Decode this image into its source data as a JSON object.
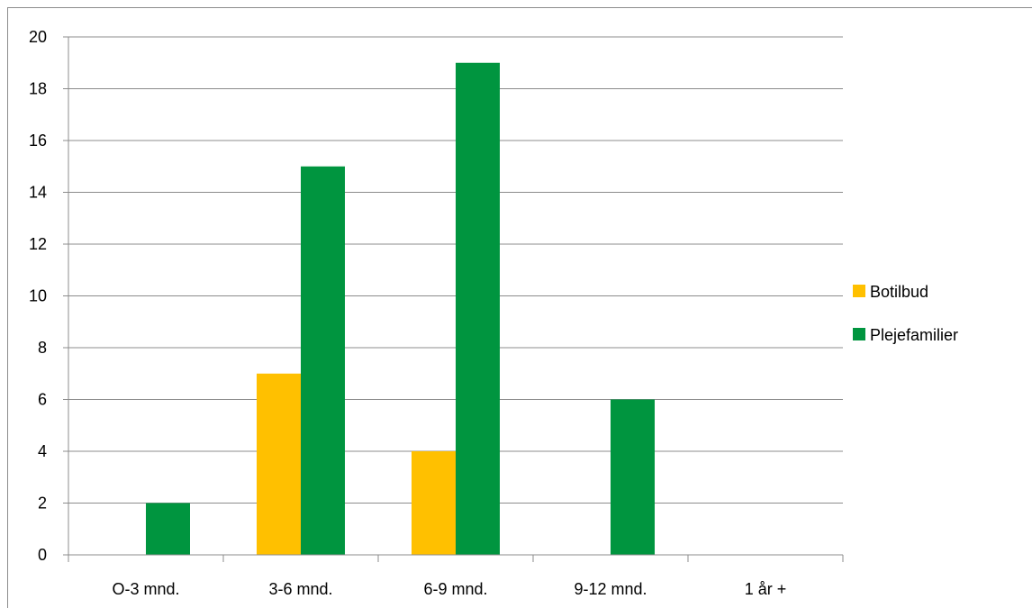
{
  "chart_data": {
    "type": "bar",
    "categories": [
      "O-3 mnd.",
      "3-6 mnd.",
      "6-9 mnd.",
      "9-12 mnd.",
      "1 år +"
    ],
    "series": [
      {
        "name": "Botilbud",
        "values": [
          0,
          7,
          4,
          0,
          0
        ],
        "color": "#ffc000"
      },
      {
        "name": "Plejefamilier",
        "values": [
          2,
          15,
          19,
          6,
          0
        ],
        "color": "#00953f"
      }
    ],
    "ylim": [
      0,
      20
    ],
    "yticks": [
      "0",
      "2",
      "4",
      "6",
      "8",
      "10",
      "12",
      "14",
      "16",
      "18",
      "20"
    ],
    "grid": true,
    "legend_position": "right",
    "title": "",
    "xlabel": "",
    "ylabel": ""
  }
}
